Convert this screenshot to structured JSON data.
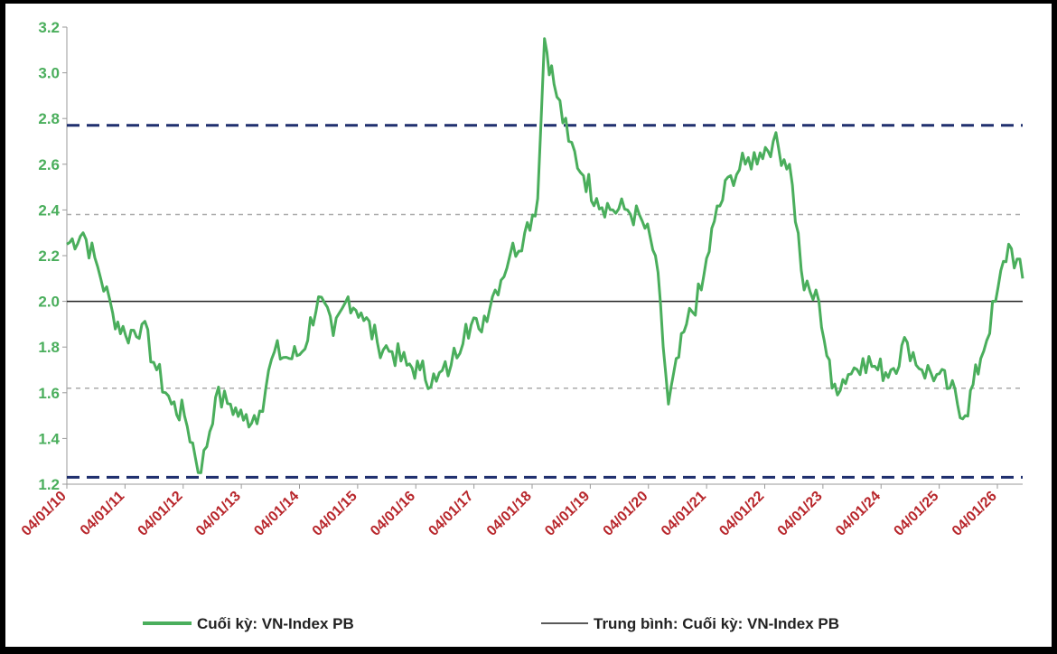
{
  "chart_data": {
    "type": "line",
    "x_tick_labels": [
      "04/01/10",
      "04/01/11",
      "04/01/12",
      "04/01/13",
      "04/01/14",
      "04/01/15",
      "04/01/16",
      "04/01/17",
      "04/01/18",
      "04/01/19",
      "04/01/20",
      "04/01/21",
      "04/01/22",
      "04/01/23",
      "04/01/24",
      "04/01/25",
      "04/01/26"
    ],
    "y_ticks": [
      1.2,
      1.4,
      1.6,
      1.8,
      2.0,
      2.2,
      2.4,
      2.6,
      2.8,
      3.0,
      3.2
    ],
    "y_tick_labels": [
      "1.2",
      "1.4",
      "1.6",
      "1.8",
      "2.0",
      "2.2",
      "2.4",
      "2.6",
      "2.8",
      "3.0",
      "3.2"
    ],
    "ylim": [
      1.2,
      3.2
    ],
    "grid": false,
    "legend_position": "bottom",
    "series": [
      {
        "name": "Cuối kỳ: VN-Index PB",
        "style": "line",
        "color": "#4aae5c",
        "x": [
          "2010-01-04",
          "2010-04-15",
          "2010-07-15",
          "2010-10-15",
          "2011-01-04",
          "2011-04-15",
          "2011-07-15",
          "2011-10-15",
          "2012-01-04",
          "2012-04-15",
          "2012-07-15",
          "2012-10-15",
          "2013-01-04",
          "2013-04-15",
          "2013-07-15",
          "2013-10-15",
          "2014-01-04",
          "2014-04-15",
          "2014-07-15",
          "2014-10-15",
          "2015-01-04",
          "2015-04-15",
          "2015-07-15",
          "2015-10-15",
          "2016-01-04",
          "2016-04-15",
          "2016-07-15",
          "2016-10-15",
          "2017-01-04",
          "2017-04-15",
          "2017-07-15",
          "2017-10-15",
          "2018-01-04",
          "2018-02-15",
          "2018-04-15",
          "2018-07-15",
          "2018-10-15",
          "2019-01-04",
          "2019-04-15",
          "2019-07-15",
          "2019-10-15",
          "2020-01-04",
          "2020-03-25",
          "2020-07-15",
          "2020-10-15",
          "2021-01-04",
          "2021-04-15",
          "2021-07-15",
          "2021-10-15",
          "2022-01-04",
          "2022-04-15",
          "2022-07-15",
          "2022-10-15",
          "2023-01-04",
          "2023-04-15",
          "2023-07-15",
          "2023-10-15",
          "2024-01-04",
          "2024-04-15",
          "2024-07-15",
          "2024-10-15",
          "2025-01-04",
          "2025-04-10",
          "2025-07-15",
          "2025-10-15",
          "2026-01-04",
          "2026-04-01"
        ],
        "y": [
          2.25,
          2.3,
          2.15,
          1.95,
          1.85,
          1.9,
          1.7,
          1.55,
          1.5,
          1.25,
          1.58,
          1.55,
          1.48,
          1.52,
          1.78,
          1.75,
          1.78,
          2.02,
          1.85,
          2.02,
          1.95,
          1.82,
          1.78,
          1.72,
          1.7,
          1.65,
          1.72,
          1.9,
          1.88,
          2.05,
          2.2,
          2.3,
          2.45,
          3.15,
          2.95,
          2.7,
          2.55,
          2.45,
          2.4,
          2.4,
          2.35,
          2.2,
          1.55,
          1.9,
          2.05,
          2.35,
          2.55,
          2.6,
          2.65,
          2.7,
          2.6,
          2.05,
          2.0,
          1.62,
          1.68,
          1.75,
          1.7,
          1.7,
          1.82,
          1.7,
          1.68,
          1.62,
          1.5,
          1.75,
          2.0,
          2.25,
          2.1
        ]
      },
      {
        "name": "Trung bình: Cuối kỳ: VN-Index PB",
        "style": "hline",
        "color": "#222222",
        "value": 2.0
      },
      {
        "style": "hline-dashed",
        "color": "#1f2f6e",
        "values": [
          2.77,
          1.23
        ]
      },
      {
        "style": "hline-dotted",
        "color": "#aaaaaa",
        "values": [
          2.38,
          1.62
        ]
      }
    ]
  },
  "legend": {
    "item1_label": "Cuối kỳ: VN-Index PB",
    "item2_label": "Trung bình: Cuối kỳ: VN-Index PB"
  }
}
